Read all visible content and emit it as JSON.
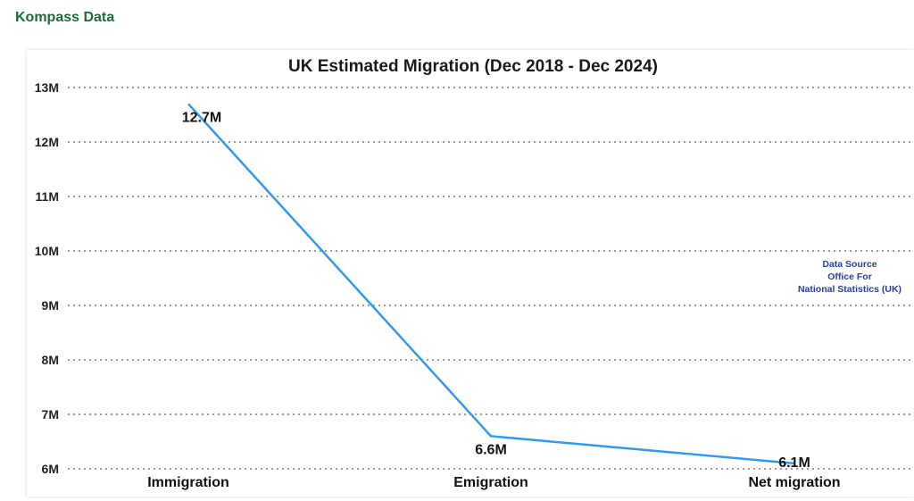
{
  "brand": "Kompass Data",
  "colors": {
    "series": "#3399ee",
    "brand": "#1e6b3a",
    "note": "#2a3f9a"
  },
  "chart_data": {
    "type": "line",
    "title": "UK Estimated Migration (Dec 2018 - Dec 2024)",
    "xlabel": "",
    "ylabel": "",
    "categories": [
      "Immigration",
      "Emigration",
      "Net migration"
    ],
    "values": [
      12.7,
      6.6,
      6.1
    ],
    "data_labels": [
      "12.7M",
      "6.6M",
      "6.1M"
    ],
    "ylim": [
      6,
      13
    ],
    "yticks": [
      {
        "value": 6,
        "label": "6M"
      },
      {
        "value": 7,
        "label": "7M"
      },
      {
        "value": 8,
        "label": "8M"
      },
      {
        "value": 9,
        "label": "9M"
      },
      {
        "value": 10,
        "label": "10M"
      },
      {
        "value": 11,
        "label": "11M"
      },
      {
        "value": 12,
        "label": "12M"
      },
      {
        "value": 13,
        "label": "13M"
      }
    ],
    "grid": true,
    "legend": "none",
    "annotation": [
      "Data Source",
      "Office For",
      "National Statistics (UK)"
    ]
  }
}
